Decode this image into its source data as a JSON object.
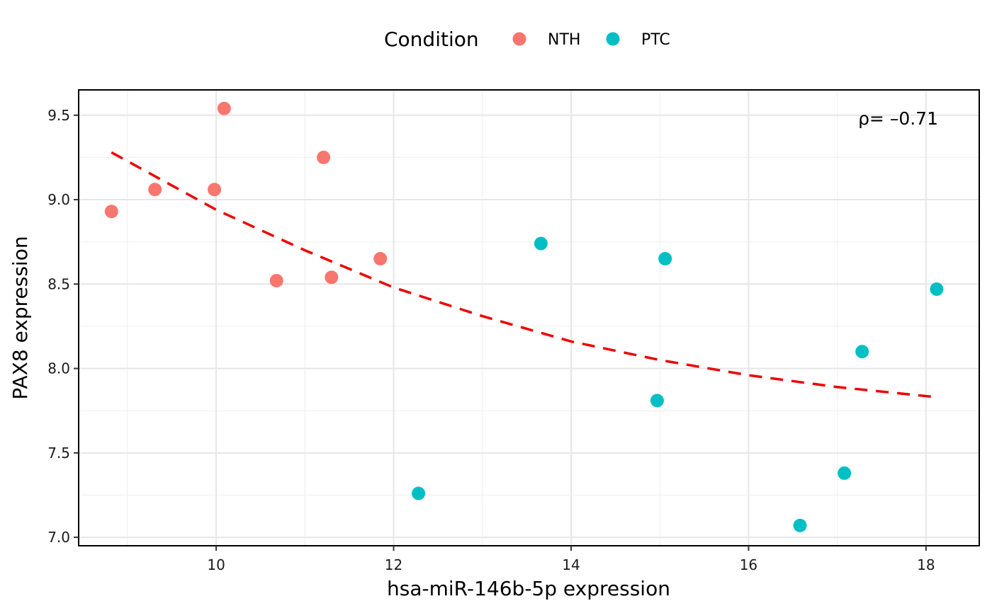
{
  "chart_data": {
    "type": "scatter",
    "xlabel": "hsa-miR-146b-5p expression",
    "ylabel": "PAX8 expression",
    "xlim": [
      8.45,
      18.6
    ],
    "ylim": [
      6.95,
      9.65
    ],
    "x_ticks": [
      10,
      12,
      14,
      16,
      18
    ],
    "y_ticks": [
      7.0,
      7.5,
      8.0,
      8.5,
      9.0,
      9.5
    ],
    "x_tick_labels": [
      "10",
      "12",
      "14",
      "16",
      "18"
    ],
    "y_tick_labels": [
      "7.0",
      "7.5",
      "8.0",
      "8.5",
      "9.0",
      "9.5"
    ],
    "grid": true,
    "legend": {
      "title": "Condition",
      "position": "top",
      "entries": [
        "NTH",
        "PTC"
      ]
    },
    "annotation": "ρ= –0.71",
    "series": [
      {
        "name": "NTH",
        "color": "#F8766D",
        "points": [
          {
            "x": 8.82,
            "y": 8.93
          },
          {
            "x": 9.31,
            "y": 9.06
          },
          {
            "x": 9.98,
            "y": 9.06
          },
          {
            "x": 10.09,
            "y": 9.54
          },
          {
            "x": 10.68,
            "y": 8.52
          },
          {
            "x": 11.21,
            "y": 9.25
          },
          {
            "x": 11.3,
            "y": 8.54
          },
          {
            "x": 11.85,
            "y": 8.65
          }
        ]
      },
      {
        "name": "PTC",
        "color": "#00BFC4",
        "points": [
          {
            "x": 12.28,
            "y": 7.26
          },
          {
            "x": 13.66,
            "y": 8.74
          },
          {
            "x": 14.97,
            "y": 7.81
          },
          {
            "x": 15.06,
            "y": 8.65
          },
          {
            "x": 16.58,
            "y": 7.07
          },
          {
            "x": 17.08,
            "y": 7.38
          },
          {
            "x": 17.28,
            "y": 8.1
          },
          {
            "x": 18.12,
            "y": 8.47
          }
        ]
      }
    ],
    "trend_line": {
      "style": "dashed",
      "color": "#EE0000",
      "points": [
        {
          "x": 8.82,
          "y": 9.28
        },
        {
          "x": 10,
          "y": 8.94
        },
        {
          "x": 11,
          "y": 8.7
        },
        {
          "x": 12,
          "y": 8.48
        },
        {
          "x": 13,
          "y": 8.31
        },
        {
          "x": 14,
          "y": 8.16
        },
        {
          "x": 15,
          "y": 8.05
        },
        {
          "x": 16,
          "y": 7.96
        },
        {
          "x": 17,
          "y": 7.89
        },
        {
          "x": 18.12,
          "y": 7.83
        }
      ]
    }
  }
}
